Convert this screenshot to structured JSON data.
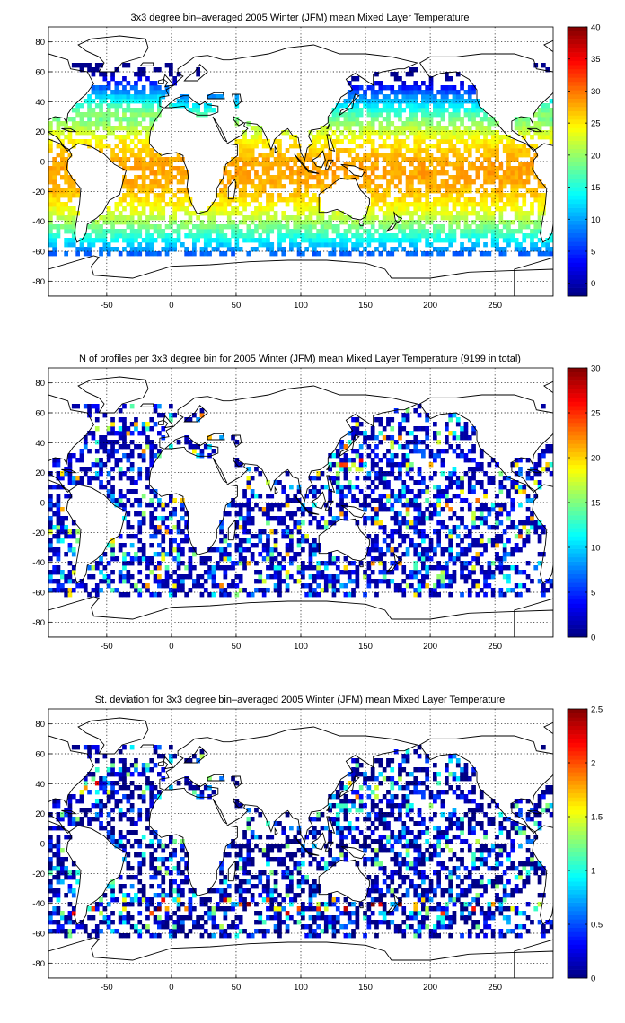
{
  "colormap": "jet",
  "chart_data": [
    {
      "type": "heatmap",
      "title": "3x3 degree bin–averaged 2005 Winter (JFM) mean Mixed Layer Temperature",
      "xlim": [
        -95,
        295
      ],
      "ylim": [
        -90,
        90
      ],
      "xticks": [
        -50,
        0,
        50,
        100,
        150,
        200,
        250
      ],
      "yticks": [
        -80,
        -60,
        -40,
        -20,
        0,
        20,
        40,
        60,
        80
      ],
      "grid": true,
      "bin_size_deg": 3,
      "colorbar": {
        "min": -2,
        "max": 40,
        "ticks": [
          0,
          5,
          10,
          15,
          20,
          25,
          30,
          35,
          40
        ]
      },
      "pattern": "temperature"
    },
    {
      "type": "heatmap",
      "title": "N of profiles per 3x3 degree bin for 2005 Winter (JFM) mean Mixed Layer Temperature  (9199 in total)",
      "xlim": [
        -95,
        295
      ],
      "ylim": [
        -90,
        90
      ],
      "xticks": [
        -50,
        0,
        50,
        100,
        150,
        200,
        250
      ],
      "yticks": [
        -80,
        -60,
        -40,
        -20,
        0,
        20,
        40,
        60,
        80
      ],
      "grid": true,
      "bin_size_deg": 3,
      "colorbar": {
        "min": 0,
        "max": 30,
        "ticks": [
          0,
          5,
          10,
          15,
          20,
          25,
          30
        ]
      },
      "pattern": "count"
    },
    {
      "type": "heatmap",
      "title": "St. deviation for 3x3 degree bin–averaged 2005 Winter (JFM) mean Mixed Layer Temperature",
      "xlim": [
        -95,
        295
      ],
      "ylim": [
        -90,
        90
      ],
      "xticks": [
        -50,
        0,
        50,
        100,
        150,
        200,
        250
      ],
      "yticks": [
        -80,
        -60,
        -40,
        -20,
        0,
        20,
        40,
        60,
        80
      ],
      "grid": true,
      "bin_size_deg": 3,
      "colorbar": {
        "min": 0,
        "max": 2.5,
        "ticks": [
          0,
          0.5,
          1,
          1.5,
          2,
          2.5
        ]
      },
      "pattern": "std"
    }
  ]
}
